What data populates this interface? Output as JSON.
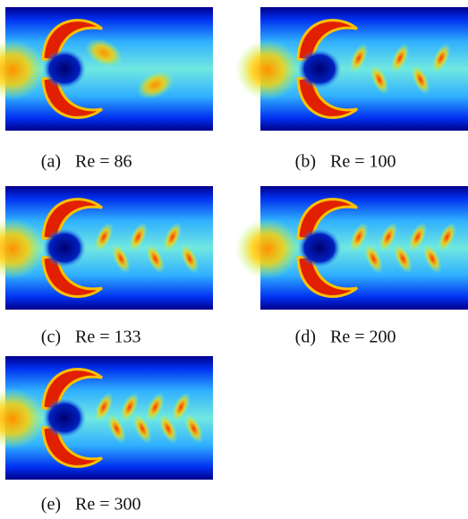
{
  "figure": {
    "panels": [
      {
        "label": "(a)",
        "caption": "Re = 86"
      },
      {
        "label": "(b)",
        "caption": "Re = 100"
      },
      {
        "label": "(c)",
        "caption": "Re = 133"
      },
      {
        "label": "(d)",
        "caption": "Re = 200"
      },
      {
        "label": "(e)",
        "caption": "Re = 300"
      }
    ]
  }
}
